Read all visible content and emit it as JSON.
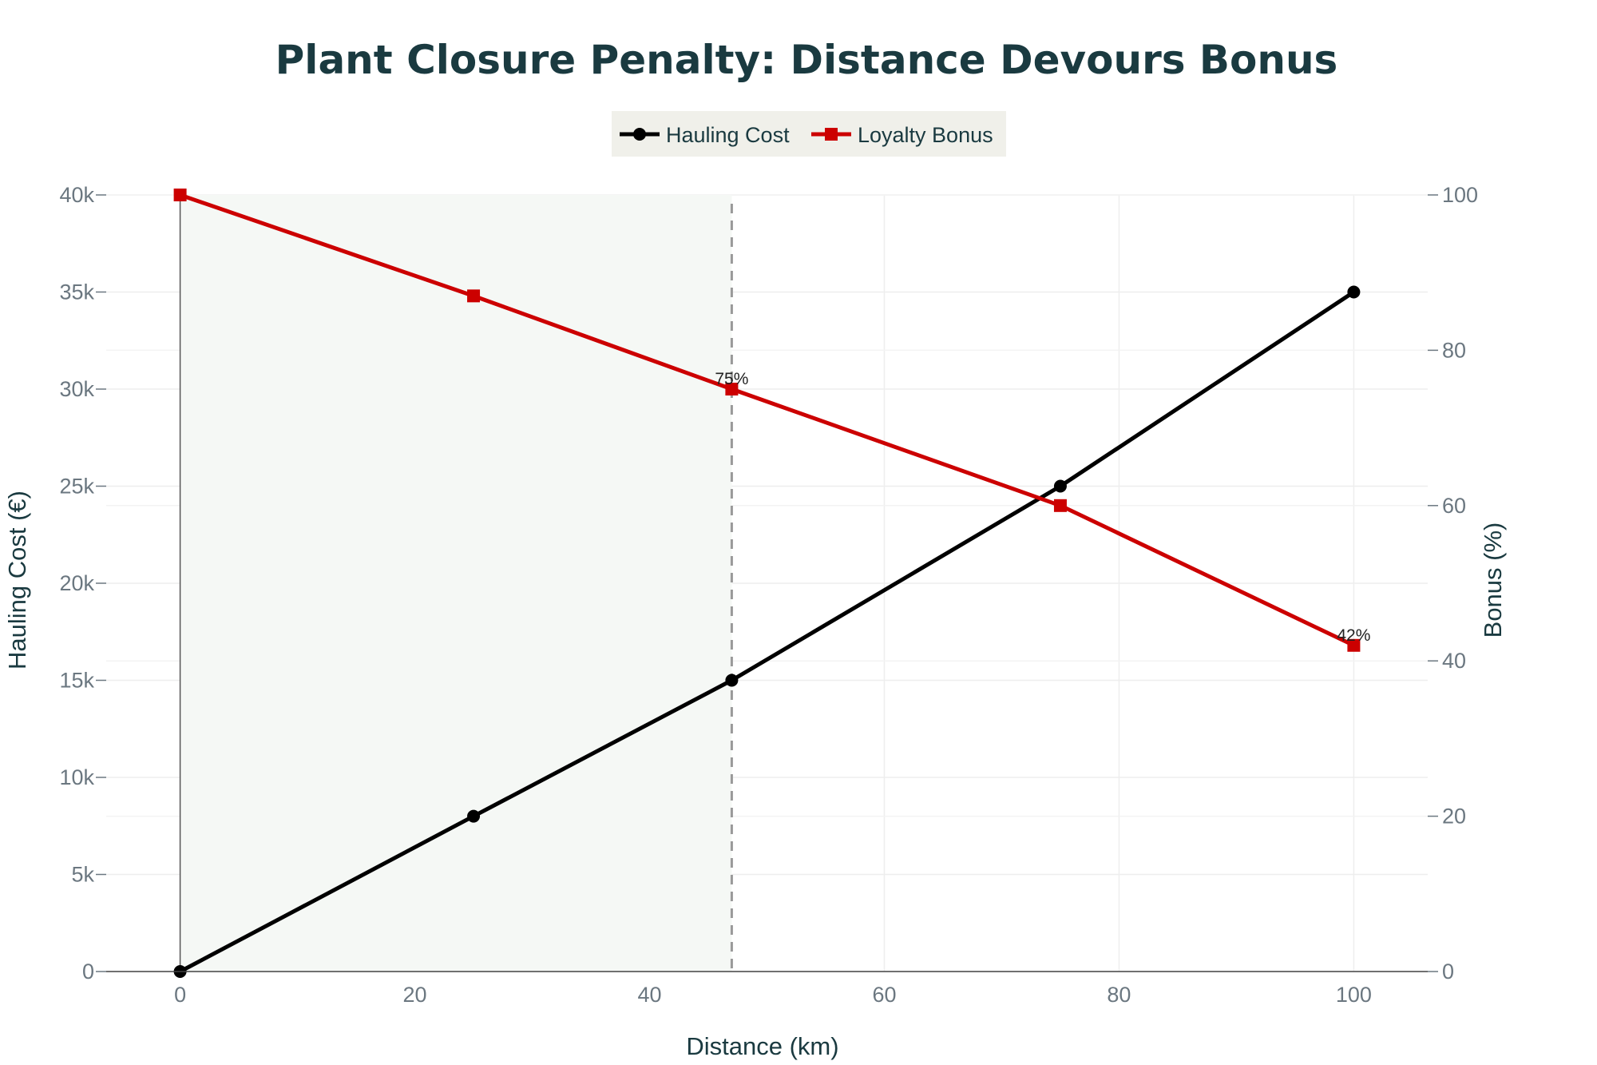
{
  "chart_data": {
    "type": "line",
    "title": "Plant Closure Penalty: Distance Devours Bonus",
    "xlabel": "Distance (km)",
    "ylabel_left": "Hauling Cost (€)",
    "ylabel_right": "Bonus (%)",
    "xlim": [
      -6.3,
      106.3
    ],
    "ylim_left": [
      0,
      40000
    ],
    "ylim_right": [
      0,
      100
    ],
    "x_ticks": [
      0,
      20,
      40,
      60,
      80,
      100
    ],
    "y_left_ticks": [
      0,
      5000,
      10000,
      15000,
      20000,
      25000,
      30000,
      35000,
      40000
    ],
    "y_left_tick_labels": [
      "0",
      "5k",
      "10k",
      "15k",
      "20k",
      "25k",
      "30k",
      "35k",
      "40k"
    ],
    "y_right_ticks": [
      0,
      20,
      40,
      60,
      80,
      100
    ],
    "grid": true,
    "legend_placement": "top-center",
    "shaded_region": {
      "x0": 0,
      "x1": 47,
      "color": "#f5f8f5"
    },
    "reference_line": {
      "x": 47,
      "style": "dashed",
      "color": "#999999"
    },
    "series": [
      {
        "name": "Hauling Cost",
        "axis": "left",
        "color": "#000000",
        "marker": "circle",
        "x": [
          0,
          25,
          47,
          75,
          100
        ],
        "values": [
          0,
          8000,
          15000,
          25000,
          35000
        ]
      },
      {
        "name": "Loyalty Bonus",
        "axis": "right",
        "color": "#cc0000",
        "marker": "square",
        "x": [
          0,
          25,
          47,
          75,
          100
        ],
        "values": [
          100,
          87,
          75,
          60,
          42
        ]
      }
    ],
    "annotations": [
      {
        "text": "75%",
        "x": 47,
        "y": 75,
        "axis": "right"
      },
      {
        "text": "42%",
        "x": 100,
        "y": 42,
        "axis": "right"
      }
    ],
    "colors": {
      "title": "#1a3a40",
      "axis_label": "#1a3a40",
      "tick": "#6b7780",
      "legend_bg": "#f0f0ea",
      "grid": "#eeeeee"
    }
  }
}
